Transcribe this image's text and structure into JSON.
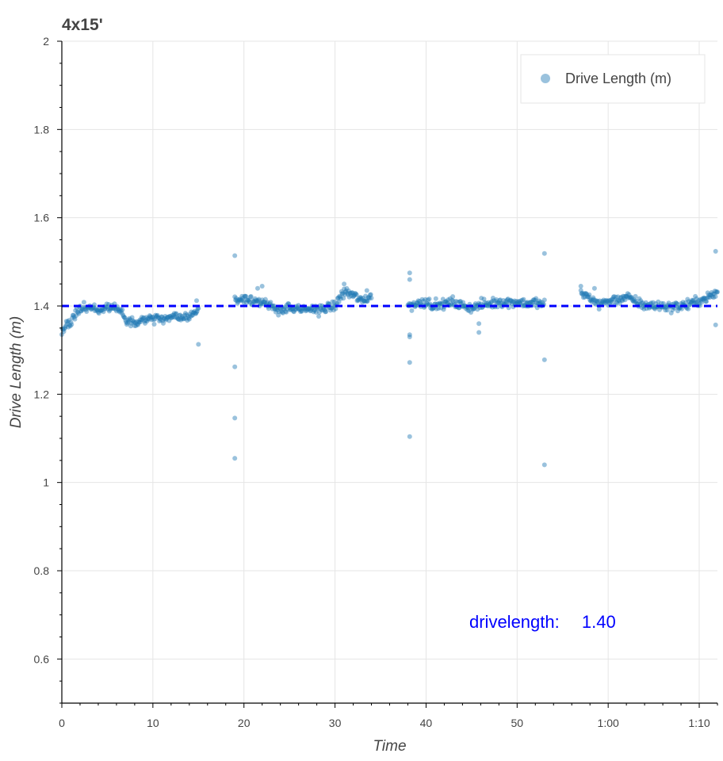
{
  "chart_data": {
    "type": "scatter",
    "title": "4x15'",
    "xlabel": "Time",
    "ylabel": "Drive Length (m)",
    "xlim": [
      0,
      72
    ],
    "ylim": [
      0.5,
      2.0
    ],
    "x_unit": "minutes",
    "x_ticks": [
      {
        "value": 0,
        "label": "0"
      },
      {
        "value": 10,
        "label": "10"
      },
      {
        "value": 20,
        "label": "20"
      },
      {
        "value": 30,
        "label": "30"
      },
      {
        "value": 40,
        "label": "40"
      },
      {
        "value": 50,
        "label": "50"
      },
      {
        "value": 60,
        "label": "1:00"
      },
      {
        "value": 70,
        "label": "1:10"
      }
    ],
    "y_ticks": [
      {
        "value": 0.6,
        "label": "0.6"
      },
      {
        "value": 0.8,
        "label": "0.8"
      },
      {
        "value": 1.0,
        "label": "1"
      },
      {
        "value": 1.2,
        "label": "1.2"
      },
      {
        "value": 1.4,
        "label": "1.4"
      },
      {
        "value": 1.6,
        "label": "1.6"
      },
      {
        "value": 1.8,
        "label": "1.8"
      },
      {
        "value": 2.0,
        "label": "2"
      }
    ],
    "grid": true,
    "legend_position": "top-right",
    "point_color": "#1f77b4",
    "reference_line": {
      "y": 1.4,
      "color": "#0000ff",
      "style": "dashed"
    },
    "annotation": {
      "label": "drivelength:",
      "value": "1.40",
      "color": "#0000ff"
    },
    "series": [
      {
        "name": "Drive Length (m)",
        "profile": [
          [
            0.0,
            1.34
          ],
          [
            0.5,
            1.355
          ],
          [
            1.0,
            1.365
          ],
          [
            1.5,
            1.38
          ],
          [
            2.0,
            1.392
          ],
          [
            2.5,
            1.398
          ],
          [
            3.0,
            1.395
          ],
          [
            3.5,
            1.392
          ],
          [
            4.0,
            1.39
          ],
          [
            4.5,
            1.393
          ],
          [
            5.0,
            1.398
          ],
          [
            5.5,
            1.4
          ],
          [
            6.0,
            1.395
          ],
          [
            6.5,
            1.385
          ],
          [
            7.0,
            1.368
          ],
          [
            7.5,
            1.362
          ],
          [
            8.0,
            1.365
          ],
          [
            9.0,
            1.37
          ],
          [
            10.0,
            1.372
          ],
          [
            11.0,
            1.37
          ],
          [
            12.0,
            1.373
          ],
          [
            13.0,
            1.375
          ],
          [
            14.0,
            1.378
          ],
          [
            14.5,
            1.385
          ],
          [
            15.0,
            1.393
          ],
          [
            19.0,
            1.412
          ],
          [
            20.0,
            1.418
          ],
          [
            21.0,
            1.415
          ],
          [
            22.0,
            1.405
          ],
          [
            23.0,
            1.398
          ],
          [
            24.0,
            1.392
          ],
          [
            25.0,
            1.395
          ],
          [
            26.0,
            1.39
          ],
          [
            27.0,
            1.392
          ],
          [
            28.0,
            1.393
          ],
          [
            29.0,
            1.395
          ],
          [
            30.0,
            1.4
          ],
          [
            30.5,
            1.418
          ],
          [
            31.0,
            1.432
          ],
          [
            32.0,
            1.425
          ],
          [
            33.0,
            1.41
          ],
          [
            34.0,
            1.425
          ],
          [
            38.0,
            1.4
          ],
          [
            39.0,
            1.405
          ],
          [
            40.0,
            1.41
          ],
          [
            41.0,
            1.4
          ],
          [
            42.0,
            1.405
          ],
          [
            43.0,
            1.408
          ],
          [
            44.0,
            1.4
          ],
          [
            45.0,
            1.397
          ],
          [
            46.0,
            1.402
          ],
          [
            47.0,
            1.405
          ],
          [
            48.0,
            1.41
          ],
          [
            49.0,
            1.408
          ],
          [
            50.0,
            1.41
          ],
          [
            51.0,
            1.405
          ],
          [
            52.0,
            1.408
          ],
          [
            53.0,
            1.402
          ],
          [
            57.0,
            1.43
          ],
          [
            58.0,
            1.418
          ],
          [
            59.0,
            1.405
          ],
          [
            60.0,
            1.41
          ],
          [
            61.0,
            1.415
          ],
          [
            62.0,
            1.42
          ],
          [
            63.0,
            1.41
          ],
          [
            64.0,
            1.402
          ],
          [
            65.0,
            1.4
          ],
          [
            66.0,
            1.4
          ],
          [
            67.0,
            1.398
          ],
          [
            68.0,
            1.4
          ],
          [
            69.0,
            1.405
          ],
          [
            70.0,
            1.412
          ],
          [
            71.0,
            1.42
          ],
          [
            72.0,
            1.43
          ]
        ],
        "segments": [
          [
            0,
            15
          ],
          [
            19,
            34
          ],
          [
            38,
            53
          ],
          [
            57,
            72
          ]
        ],
        "points_per_minute": 14,
        "noise": 0.011,
        "outliers": [
          [
            14.8,
            1.412
          ],
          [
            15.0,
            1.313
          ],
          [
            19.0,
            1.514
          ],
          [
            19.0,
            1.262
          ],
          [
            19.0,
            1.146
          ],
          [
            19.0,
            1.055
          ],
          [
            21.5,
            1.44
          ],
          [
            22.0,
            1.445
          ],
          [
            31.0,
            1.45
          ],
          [
            33.5,
            1.435
          ],
          [
            38.2,
            1.475
          ],
          [
            38.2,
            1.46
          ],
          [
            38.2,
            1.335
          ],
          [
            38.2,
            1.33
          ],
          [
            38.2,
            1.272
          ],
          [
            38.2,
            1.104
          ],
          [
            45.8,
            1.36
          ],
          [
            45.8,
            1.34
          ],
          [
            53.0,
            1.519
          ],
          [
            53.0,
            1.278
          ],
          [
            53.0,
            1.04
          ],
          [
            57.0,
            1.445
          ],
          [
            58.5,
            1.44
          ],
          [
            71.8,
            1.524
          ],
          [
            71.8,
            1.357
          ]
        ]
      }
    ]
  }
}
